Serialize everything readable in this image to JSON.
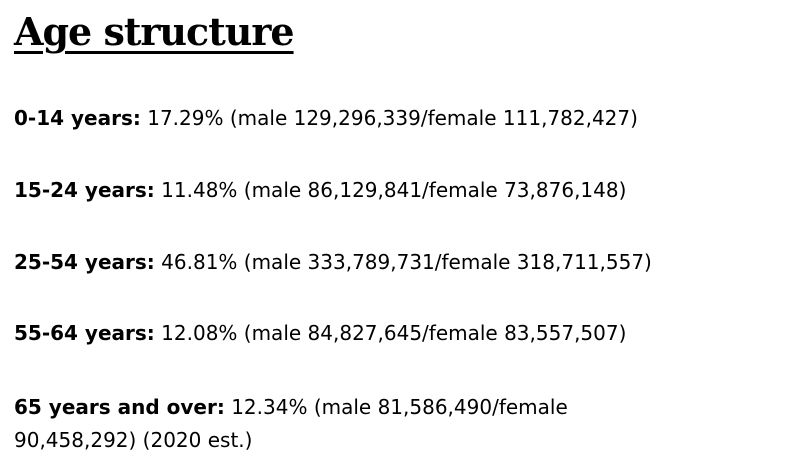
{
  "section": {
    "title": "Age structure"
  },
  "age_structure": [
    {
      "label": "0-14 years:",
      "value": "17.29% (male 129,296,339/female 111,782,427)"
    },
    {
      "label": "15-24 years:",
      "value": "11.48% (male 86,129,841/female 73,876,148)"
    },
    {
      "label": "25-54 years:",
      "value": "46.81% (male 333,789,731/female 318,711,557)"
    },
    {
      "label": "55-64 years:",
      "value": "12.08% (male 84,827,645/female 83,557,507)"
    },
    {
      "label": "65 years and over:",
      "value": "12.34% (male 81,586,490/female 90,458,292) (2020 est.)"
    }
  ]
}
